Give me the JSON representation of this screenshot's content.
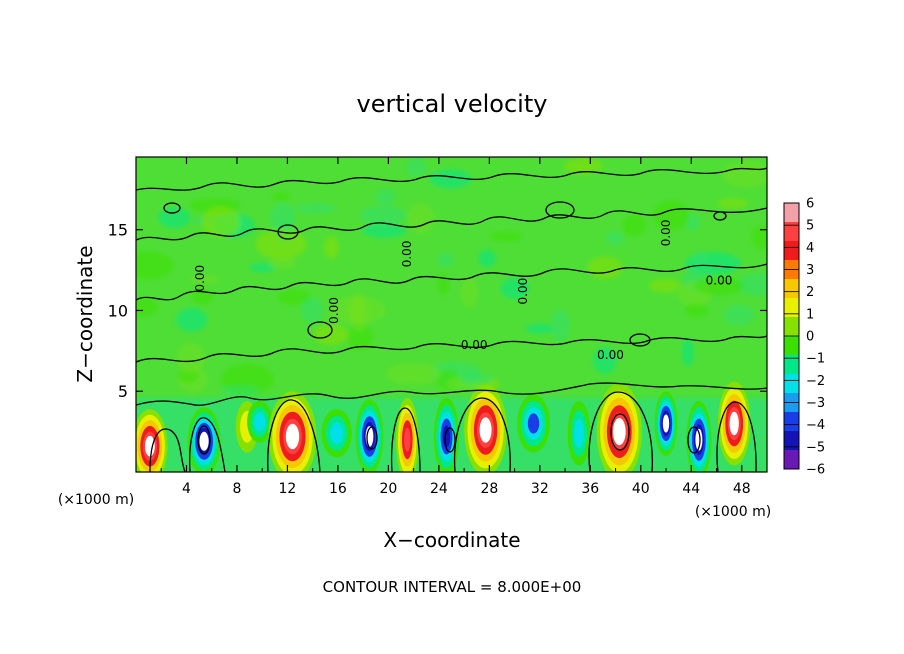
{
  "chart_data": {
    "type": "heatmap",
    "title": "vertical velocity",
    "xlabel": "X−coordinate",
    "ylabel": "Z−coordinate",
    "x_unit_left": "(×1000 m)",
    "x_unit_right": "(×1000 m)",
    "xlim": [
      0,
      50
    ],
    "ylim": [
      0,
      19.5
    ],
    "x_ticks": [
      4,
      8,
      12,
      16,
      20,
      24,
      28,
      32,
      36,
      40,
      44,
      48
    ],
    "x_tick_labels": [
      "4",
      "8",
      "12",
      "16",
      "20",
      "24",
      "28",
      "32",
      "36",
      "40",
      "44",
      "48"
    ],
    "y_ticks": [
      5,
      10,
      15
    ],
    "y_tick_labels": [
      "5",
      "10",
      "15"
    ],
    "grid": false,
    "footer": "CONTOUR INTERVAL = 8.000E+00",
    "contour_labels": [
      "0.00",
      "0.00",
      "0.00",
      "0.00",
      "0.00",
      "0.00",
      "0.00",
      "0.00"
    ],
    "colorbar": {
      "min": -6,
      "max": 6,
      "tick_values": [
        6,
        5,
        4,
        3,
        2,
        1,
        0,
        -1,
        -2,
        -3,
        -4,
        -5,
        -6
      ],
      "tick_labels": [
        "6",
        "5",
        "4",
        "3",
        "2",
        "1",
        "0",
        "−1",
        "−2",
        "−3",
        "−4",
        "−5",
        "−6"
      ],
      "colors": [
        "#f4a0a8",
        "#ff4040",
        "#ee1c1c",
        "#ff7a00",
        "#f6c800",
        "#e6f000",
        "#86e000",
        "#3ce000",
        "#00e68a",
        "#00e0e6",
        "#1a9cf0",
        "#1a3ee6",
        "#1414b4",
        "#6a1ab4"
      ]
    },
    "background_value": 0.2,
    "cells": [
      {
        "x": 1.1,
        "z": 1.6,
        "peak": 6,
        "sx": 1.4,
        "sz": 2.3
      },
      {
        "x": 5.4,
        "z": 1.9,
        "peak": -6,
        "sx": 1.3,
        "sz": 2.1
      },
      {
        "x": 8.8,
        "z": 2.8,
        "peak": 2,
        "sx": 0.9,
        "sz": 1.6
      },
      {
        "x": 9.8,
        "z": 3.1,
        "peak": -3,
        "sx": 1.0,
        "sz": 1.3
      },
      {
        "x": 12.4,
        "z": 2.2,
        "peak": 6,
        "sx": 1.9,
        "sz": 2.8
      },
      {
        "x": 15.9,
        "z": 2.4,
        "peak": -3,
        "sx": 1.2,
        "sz": 1.5
      },
      {
        "x": 18.5,
        "z": 2.2,
        "peak": -6,
        "sx": 1.1,
        "sz": 2.3
      },
      {
        "x": 21.5,
        "z": 2.0,
        "peak": 5,
        "sx": 0.9,
        "sz": 2.6
      },
      {
        "x": 24.6,
        "z": 2.2,
        "peak": -5,
        "sx": 1.0,
        "sz": 2.4
      },
      {
        "x": 27.7,
        "z": 2.6,
        "peak": 6,
        "sx": 1.7,
        "sz": 2.8
      },
      {
        "x": 31.5,
        "z": 3.0,
        "peak": -4,
        "sx": 1.3,
        "sz": 1.8
      },
      {
        "x": 35.1,
        "z": 2.4,
        "peak": -3,
        "sx": 0.9,
        "sz": 2.0
      },
      {
        "x": 38.3,
        "z": 2.5,
        "peak": 6,
        "sx": 1.8,
        "sz": 3.0
      },
      {
        "x": 42.0,
        "z": 3.0,
        "peak": -6,
        "sx": 0.9,
        "sz": 2.0
      },
      {
        "x": 44.6,
        "z": 2.0,
        "peak": -6,
        "sx": 1.0,
        "sz": 2.4
      },
      {
        "x": 47.4,
        "z": 3.0,
        "peak": 6,
        "sx": 1.3,
        "sz": 2.6
      }
    ]
  }
}
